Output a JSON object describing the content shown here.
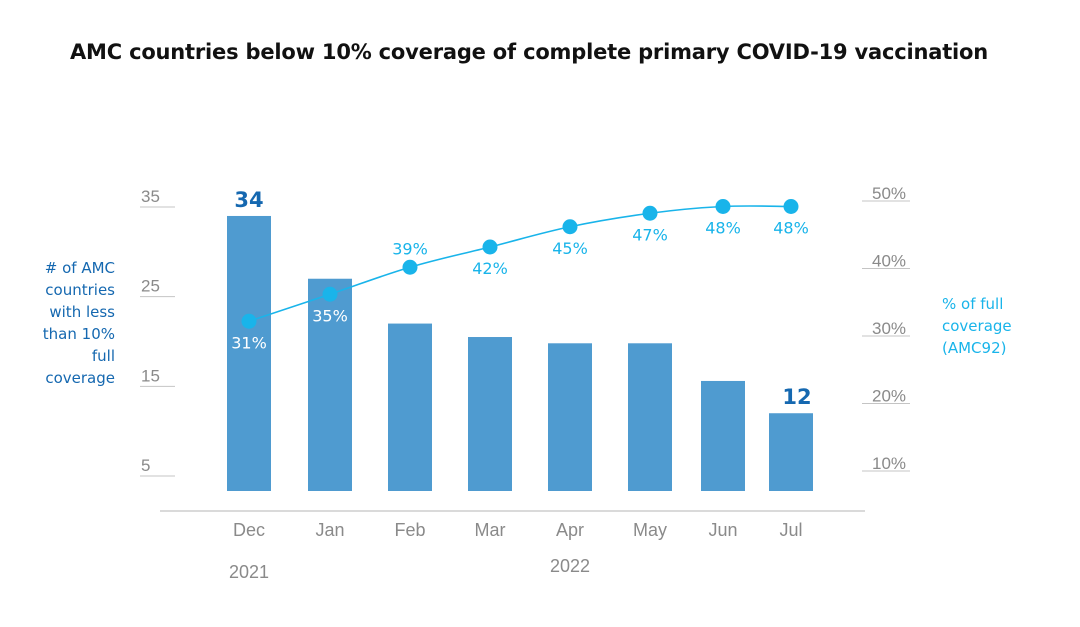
{
  "title": "AMC countries below 10% coverage of complete primary COVID-19 vaccination",
  "colors": {
    "bar": "#4f9bd0",
    "bar_label": "#1568b0",
    "line": "#19b4ea",
    "axis_text": "#8a8a8a",
    "axis_line": "#c4c4c4",
    "left_label": "#1568b0",
    "right_label": "#19b4ea"
  },
  "left_axis": {
    "label_lines": [
      "# of AMC",
      "countries",
      "with less",
      "than 10%",
      "full",
      "coverage"
    ],
    "ticks": [
      "35",
      "25",
      "15",
      "5"
    ]
  },
  "right_axis": {
    "label_lines": [
      "% of full",
      "coverage",
      "(AMC92)"
    ],
    "ticks": [
      "50%",
      "40%",
      "30%",
      "20%",
      "10%"
    ]
  },
  "year_labels": [
    "2021",
    "2022"
  ],
  "chart_data": {
    "type": "bar",
    "title": "AMC countries below 10% coverage of complete primary COVID-19 vaccination",
    "categories": [
      "Dec",
      "Jan",
      "Feb",
      "Mar",
      "Apr",
      "May",
      "Jun",
      "Jul"
    ],
    "series": [
      {
        "name": "# of AMC countries with less than 10% full coverage",
        "type": "bar",
        "axis": "left",
        "values": [
          34,
          27,
          22,
          20.5,
          19.8,
          19.8,
          15.6,
          12
        ],
        "labels": [
          "34",
          "",
          "",
          "",
          "",
          "",
          "",
          "12"
        ]
      },
      {
        "name": "% of full coverage (AMC92)",
        "type": "line",
        "axis": "right",
        "values": [
          31,
          35,
          39,
          42,
          45,
          47,
          48,
          48
        ],
        "labels": [
          "31%",
          "35%",
          "39%",
          "42%",
          "45%",
          "47%",
          "48%",
          "48%"
        ],
        "label_positions": [
          "below",
          "below",
          "above",
          "below",
          "below",
          "below",
          "below",
          "below"
        ]
      }
    ],
    "left_ylabel": "# of AMC countries with less than 10% full coverage",
    "right_ylabel": "% of full coverage (AMC92)",
    "left_ylim": [
      0,
      37
    ],
    "right_ylim": [
      5,
      52
    ],
    "grid": false,
    "legend": "none"
  }
}
